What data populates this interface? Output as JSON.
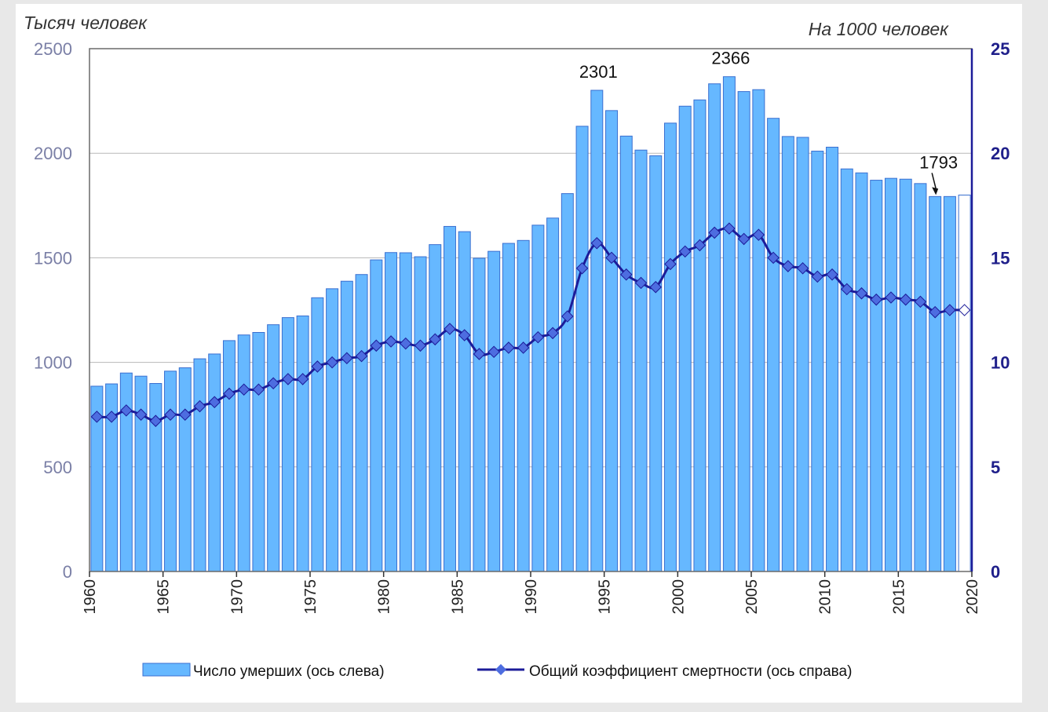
{
  "chart_data": {
    "type": "bar",
    "y_left_title": "Тысяч человек",
    "y_right_title": "На 1000 человек",
    "y_left_ticks": [
      "0",
      "500",
      "1000",
      "1500",
      "2000",
      "2500"
    ],
    "y_right_ticks": [
      "0",
      "5",
      "10",
      "15",
      "20",
      "25"
    ],
    "x_ticks": [
      "1960",
      "1965",
      "1970",
      "1975",
      "1980",
      "1985",
      "1990",
      "1995",
      "2000",
      "2005",
      "2010",
      "2015",
      "2020"
    ],
    "ylim_left": [
      0,
      2500
    ],
    "ylim_right": [
      0,
      25
    ],
    "xlim": [
      1960,
      2020
    ],
    "grid": true,
    "legend_position": "bottom",
    "years": [
      1960,
      1961,
      1962,
      1963,
      1964,
      1965,
      1966,
      1967,
      1968,
      1969,
      1970,
      1971,
      1972,
      1973,
      1974,
      1975,
      1976,
      1977,
      1978,
      1979,
      1980,
      1981,
      1982,
      1983,
      1984,
      1985,
      1986,
      1987,
      1988,
      1989,
      1990,
      1991,
      1992,
      1993,
      1994,
      1995,
      1996,
      1997,
      1998,
      1999,
      2000,
      2001,
      2002,
      2003,
      2004,
      2005,
      2006,
      2007,
      2008,
      2009,
      2010,
      2011,
      2012,
      2013,
      2014,
      2015,
      2016,
      2017,
      2018,
      2019
    ],
    "series": [
      {
        "name": "Число умерших (ось слева)",
        "axis": "left",
        "type": "bar",
        "color": "#66b8ff",
        "last_point_color": "#ffffff",
        "values": [
          886,
          897,
          949,
          934,
          899,
          958,
          974,
          1017,
          1040,
          1104,
          1131,
          1143,
          1180,
          1214,
          1222,
          1309,
          1352,
          1388,
          1420,
          1490,
          1525,
          1524,
          1505,
          1563,
          1650,
          1625,
          1498,
          1531,
          1569,
          1583,
          1656,
          1690,
          1807,
          2129,
          2301,
          2204,
          2082,
          2015,
          1988,
          2144,
          2225,
          2255,
          2332,
          2366,
          2295,
          2304,
          2167,
          2080,
          2076,
          2010,
          2029,
          1925,
          1906,
          1871,
          1880,
          1876,
          1855,
          1793,
          1793,
          1800
        ]
      },
      {
        "name": "Общий коэффициент смертности (ось справа)",
        "axis": "right",
        "type": "line",
        "color": "#1c1c99",
        "marker_color": "#4d6de0",
        "values": [
          7.4,
          7.4,
          7.7,
          7.5,
          7.2,
          7.5,
          7.5,
          7.9,
          8.1,
          8.5,
          8.7,
          8.7,
          9.0,
          9.2,
          9.2,
          9.8,
          10.0,
          10.2,
          10.3,
          10.8,
          11.0,
          10.9,
          10.8,
          11.1,
          11.6,
          11.3,
          10.4,
          10.5,
          10.7,
          10.7,
          11.2,
          11.4,
          12.2,
          14.5,
          15.7,
          15.0,
          14.2,
          13.8,
          13.6,
          14.7,
          15.3,
          15.6,
          16.2,
          16.4,
          15.9,
          16.1,
          15.0,
          14.6,
          14.5,
          14.1,
          14.2,
          13.5,
          13.3,
          13.0,
          13.1,
          13.0,
          12.9,
          12.4,
          12.5,
          12.5
        ]
      }
    ],
    "annotations": [
      {
        "year": 1994,
        "text": "2301"
      },
      {
        "year": 2003,
        "text": "2366"
      },
      {
        "year": 2017,
        "text": "1793"
      }
    ]
  }
}
